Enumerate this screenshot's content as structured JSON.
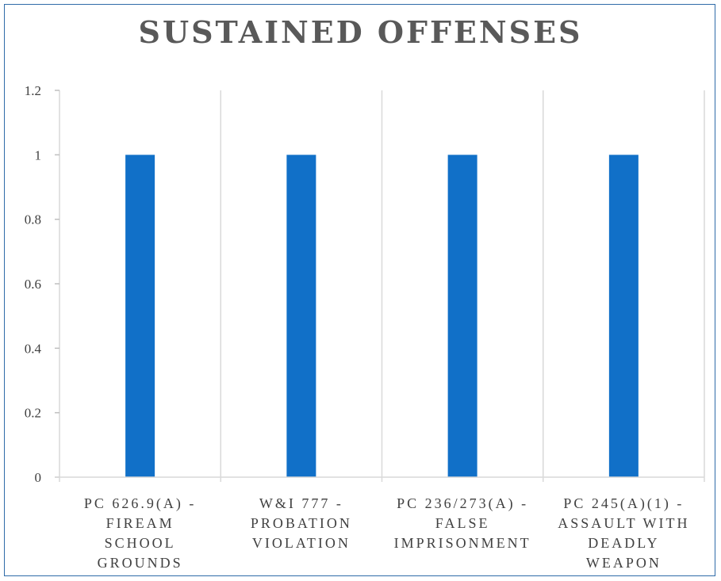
{
  "chart_data": {
    "type": "bar",
    "title": "SUSTAINED OFFENSES",
    "categories": [
      [
        "PC 626.9(A) -",
        "FIREAM",
        "SCHOOL",
        "GROUNDS"
      ],
      [
        "W&I 777 -",
        "PROBATION",
        "VIOLATION"
      ],
      [
        "PC 236/273(A) -",
        "FALSE",
        "IMPRISONMENT"
      ],
      [
        "PC 245(A)(1) -",
        "ASSAULT WITH",
        "DEADLY",
        "WEAPON"
      ]
    ],
    "values": [
      1,
      1,
      1,
      1
    ],
    "ylim": [
      0,
      1.2
    ],
    "yticks": [
      "0",
      "0.2",
      "0.4",
      "0.6",
      "0.8",
      "1",
      "1.2"
    ],
    "grid": "vertical",
    "bar_color": "#1170c8",
    "xlabel": "",
    "ylabel": ""
  }
}
